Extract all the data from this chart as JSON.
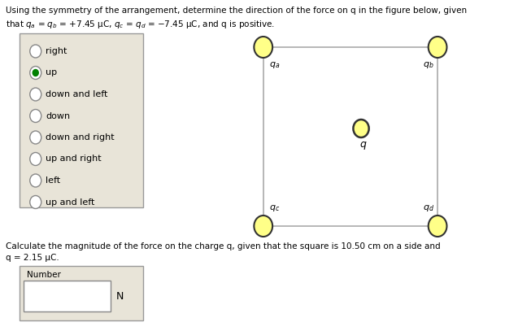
{
  "title_line1": "Using the symmetry of the arrangement, determine the direction of the force on q in the figure below, given",
  "title_line2": "that $q_a$ = $q_b$ = +7.45 μC, $q_c$ = $q_d$ = −7.45 μC, and q is positive.",
  "radio_options": [
    "right",
    "up",
    "down and left",
    "down",
    "down and right",
    "up and right",
    "left",
    "up and left"
  ],
  "selected_radio": 1,
  "calc_text_line1": "Calculate the magnitude of the force on the charge q, given that the square is 10.50 cm on a side and",
  "calc_text_line2": "q = 2.15 μC.",
  "bg_color": "#ffffff",
  "radio_box_bg": "#e8e4d8",
  "radio_box_edge": "#999999",
  "circle_fill": "#ffff88",
  "circle_edge": "#333333",
  "square_line_color": "#aaaaaa",
  "radio_circle_edge": "#888888",
  "radio_circle_fill": "#ffffff",
  "radio_dot_color": "#008000",
  "q_center_fill": "#ffff88",
  "q_center_edge": "#333333",
  "label_q_a": "$q_a$",
  "label_q_b": "$q_b$",
  "label_q_c": "$q_c$",
  "label_q_d": "$q_d$",
  "label_q": "$q$"
}
